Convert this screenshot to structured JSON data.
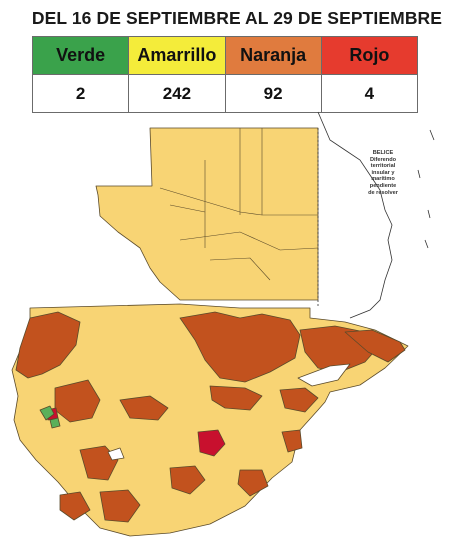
{
  "title": "DEL 16 DE SEPTIEMBRE AL 29 DE SEPTIEMBRE",
  "legend": {
    "categories": [
      {
        "label": "Verde",
        "count": "2",
        "color": "#3aa24b"
      },
      {
        "label": "Amarrillo",
        "count": "242",
        "color": "#f4ec3a"
      },
      {
        "label": "Naranja",
        "count": "92",
        "color": "#e07b3e"
      },
      {
        "label": "Rojo",
        "count": "4",
        "color": "#e63b2e"
      }
    ]
  },
  "map": {
    "fill_amarillo": "#f8d474",
    "fill_naranja": "#c2521e",
    "fill_rojo": "#c8102e",
    "fill_verde": "#5ab05a",
    "belice_label": [
      "BELICE",
      "Diferendo",
      "territorial",
      "insular y",
      "marítimo",
      "pendiente",
      "de resolver"
    ]
  }
}
